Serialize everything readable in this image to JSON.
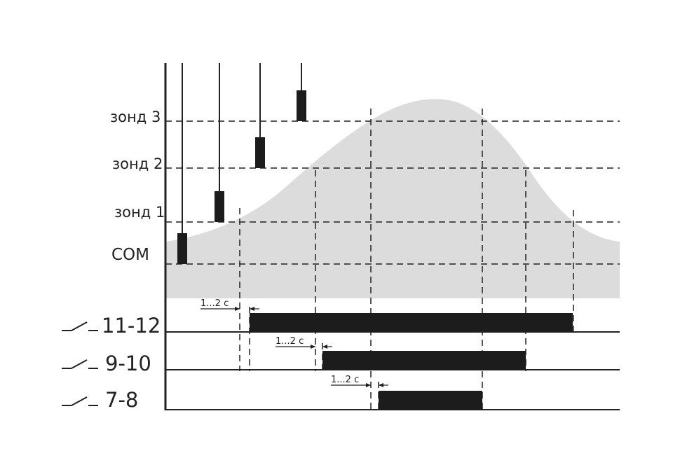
{
  "levels": {
    "zone3": "зонд 3",
    "zone2": "зонд 2",
    "zone1": "зонд 1",
    "com": "COM"
  },
  "relays": [
    {
      "label": "11-12"
    },
    {
      "label": "9-10"
    },
    {
      "label": "7-8"
    }
  ],
  "delay_label": "1...2 с",
  "colors": {
    "liquid": "#dcdcdc",
    "ink": "#1c1c1c"
  }
}
